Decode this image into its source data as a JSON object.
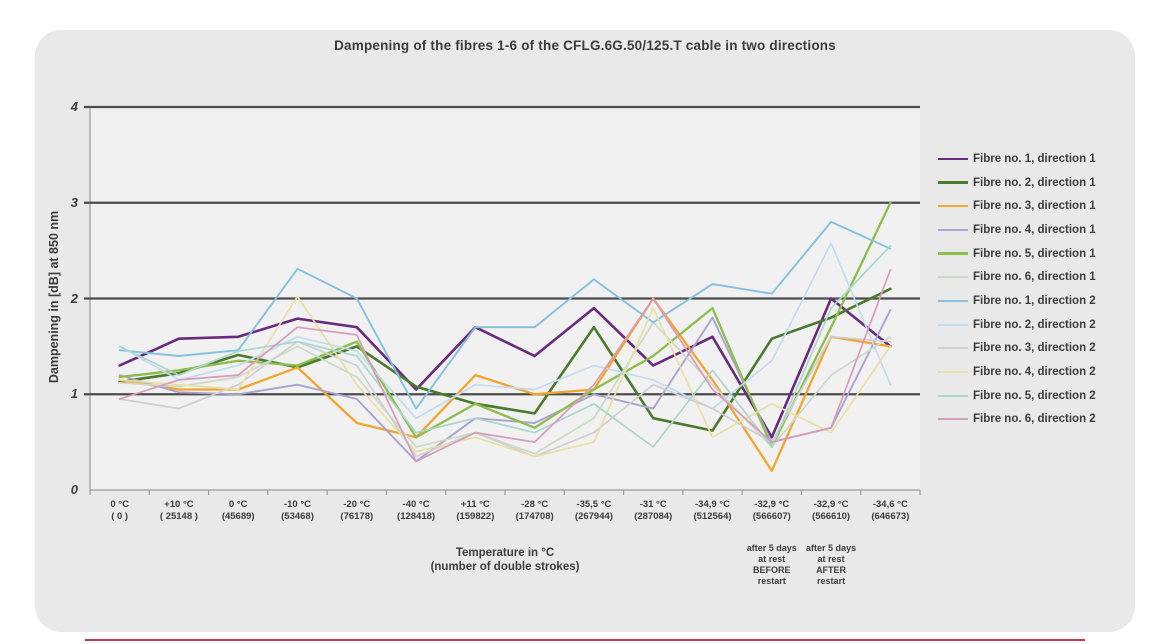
{
  "chart_data": {
    "type": "line",
    "title": "Dampening of the fibres 1-6 of the CFLG.6G.50/125.T cable in two directions",
    "ylabel": "Dampening in [dB] at 850 nm",
    "xlabel_line1": "Temperature in °C",
    "xlabel_line2": "(number of double strokes)",
    "ylim": [
      0,
      4
    ],
    "yticks": [
      0,
      1,
      2,
      3,
      4
    ],
    "gridlines_at": [
      1,
      2,
      3
    ],
    "grid": "horizontal-heavy",
    "legend_position": "right",
    "categories": [
      {
        "temp": "0 °C",
        "strokes": "( 0 )"
      },
      {
        "temp": "+10 °C",
        "strokes": "( 25148 )"
      },
      {
        "temp": "0 °C",
        "strokes": "(45689)"
      },
      {
        "temp": "-10 °C",
        "strokes": "(53468)"
      },
      {
        "temp": "-20 °C",
        "strokes": "(76178)"
      },
      {
        "temp": "-40 °C",
        "strokes": "(128418)"
      },
      {
        "temp": "+11 °C",
        "strokes": "(159822)"
      },
      {
        "temp": "-28 °C",
        "strokes": "(174708)"
      },
      {
        "temp": "-35,5 °C",
        "strokes": "(267944)"
      },
      {
        "temp": "-31 °C",
        "strokes": "(287084)"
      },
      {
        "temp": "-34,9 °C",
        "strokes": "(512564)"
      },
      {
        "temp": "-32,9 °C",
        "strokes": "(566607)"
      },
      {
        "temp": "-32,9 °C",
        "strokes": "(566610)"
      },
      {
        "temp": "-34,6 °C",
        "strokes": "(646673)"
      }
    ],
    "annotations": [
      {
        "category_index": 11,
        "lines": [
          "after 5 days",
          "at rest",
          "BEFORE",
          "restart"
        ]
      },
      {
        "category_index": 12,
        "lines": [
          "after 5 days",
          "at rest",
          "AFTER",
          "restart"
        ]
      }
    ],
    "series": [
      {
        "name": "Fibre no. 1, direction 1",
        "color": "#682a7c",
        "width": 2.6,
        "values": [
          1.3,
          1.58,
          1.6,
          1.79,
          1.7,
          1.05,
          1.7,
          1.4,
          1.9,
          1.3,
          1.6,
          0.55,
          2.0,
          1.5
        ]
      },
      {
        "name": "Fibre no. 2, direction 1",
        "color": "#4a7a2e",
        "width": 2.6,
        "values": [
          1.13,
          1.22,
          1.41,
          1.28,
          1.5,
          1.08,
          0.9,
          0.8,
          1.7,
          0.75,
          0.62,
          1.58,
          1.8,
          2.1
        ]
      },
      {
        "name": "Fibre no. 3, direction 1",
        "color": "#f2a52f",
        "width": 2.3,
        "values": [
          1.15,
          1.05,
          1.05,
          1.28,
          0.7,
          0.55,
          1.2,
          1.0,
          1.05,
          2.0,
          1.15,
          0.2,
          1.6,
          1.5
        ]
      },
      {
        "name": "Fibre no. 4, direction 1",
        "color": "#a9a3cf",
        "width": 1.9,
        "values": [
          1.2,
          1.02,
          1.0,
          1.1,
          0.95,
          0.3,
          0.75,
          0.7,
          1.0,
          0.85,
          1.8,
          0.5,
          0.65,
          1.88
        ]
      },
      {
        "name": "Fibre no. 5, direction 1",
        "color": "#8dbd4a",
        "width": 2.3,
        "values": [
          1.18,
          1.25,
          1.35,
          1.3,
          1.55,
          0.55,
          0.9,
          0.65,
          1.05,
          1.4,
          1.9,
          0.45,
          1.7,
          3.0
        ]
      },
      {
        "name": "Fibre no. 6, direction 1",
        "color": "#cdd9c8",
        "width": 1.7,
        "values": [
          1.12,
          1.08,
          1.18,
          1.5,
          1.18,
          0.45,
          0.6,
          0.38,
          0.75,
          1.75,
          1.1,
          0.45,
          1.2,
          1.6
        ]
      },
      {
        "name": "Fibre no. 1, direction 2",
        "color": "#85c1de",
        "width": 1.9,
        "values": [
          1.46,
          1.4,
          1.46,
          2.31,
          2.0,
          0.85,
          1.7,
          1.7,
          2.2,
          1.75,
          2.15,
          2.05,
          2.8,
          2.52
        ]
      },
      {
        "name": "Fibre no. 2, direction 2",
        "color": "#c3dced",
        "width": 1.7,
        "values": [
          1.5,
          1.15,
          1.3,
          1.6,
          1.45,
          0.75,
          1.1,
          1.05,
          1.3,
          1.15,
          0.85,
          1.35,
          2.58,
          1.1
        ]
      },
      {
        "name": "Fibre no. 3, direction 2",
        "color": "#cfcfd3",
        "width": 1.7,
        "values": [
          0.95,
          0.85,
          1.1,
          1.55,
          1.3,
          0.35,
          0.6,
          0.35,
          0.6,
          1.1,
          0.85,
          0.5,
          1.6,
          1.55
        ]
      },
      {
        "name": "Fibre no. 4, direction 2",
        "color": "#e7dfa5",
        "width": 1.7,
        "values": [
          1.15,
          1.1,
          1.05,
          2.02,
          1.1,
          0.4,
          0.55,
          0.35,
          0.5,
          1.9,
          0.55,
          0.9,
          0.6,
          1.5
        ]
      },
      {
        "name": "Fibre no. 5, direction 2",
        "color": "#abd6cb",
        "width": 1.7,
        "values": [
          1.5,
          1.2,
          1.45,
          1.55,
          1.4,
          0.6,
          0.75,
          0.6,
          0.9,
          0.45,
          1.25,
          0.45,
          1.9,
          2.55
        ]
      },
      {
        "name": "Fibre no. 6, direction 2",
        "color": "#d79cba",
        "width": 1.7,
        "values": [
          0.95,
          1.15,
          1.2,
          1.7,
          1.62,
          0.3,
          0.6,
          0.5,
          1.1,
          2.0,
          1.05,
          0.5,
          0.65,
          2.3
        ]
      }
    ],
    "colors": {
      "panel_bg": "#e9e9e9",
      "plot_bg": "#f1f1f1",
      "grid_heavy": "#4c4c4c",
      "axis_light": "#9a9a9a",
      "text": "#3c3c3c",
      "bottom_rule": "#c43a4b"
    }
  }
}
